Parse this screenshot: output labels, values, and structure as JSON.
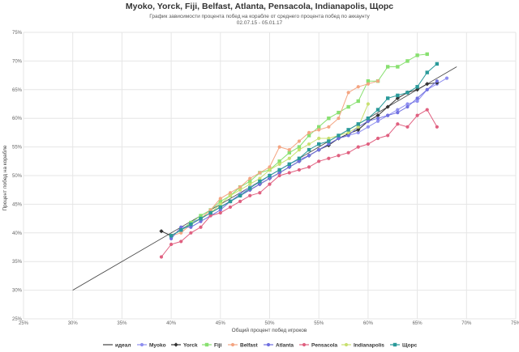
{
  "chart_data": {
    "type": "line",
    "title": "Myoko, Yorck, Fiji, Belfast, Atlanta, Pensacola, Indianapolis, Щорс",
    "subtitle_lines": [
      "График зависимости процента побед на корабле от среднего процента побед по аккаунту",
      "02.07.15 - 05.01.17"
    ],
    "xlabel": "Общий процент побед игроков",
    "ylabel": "Процент побед на корабле",
    "xlim": [
      25,
      75
    ],
    "ylim": [
      25,
      75
    ],
    "x_ticks": [
      "25%",
      "30%",
      "35%",
      "40%",
      "45%",
      "50%",
      "55%",
      "60%",
      "65%",
      "70%",
      "75%"
    ],
    "y_ticks": [
      "25%",
      "30%",
      "35%",
      "40%",
      "45%",
      "50%",
      "55%",
      "60%",
      "65%",
      "70%",
      "75%"
    ],
    "grid": true,
    "legend_position": "bottom",
    "series": [
      {
        "name": "идеал",
        "color": "#444444",
        "marker": "none",
        "points": [
          [
            30,
            30
          ],
          [
            69,
            69
          ]
        ]
      },
      {
        "name": "Myoko",
        "color": "#8f8ff0",
        "marker": "circle",
        "points": [
          [
            40,
            39.5
          ],
          [
            41,
            40.5
          ],
          [
            42,
            41.8
          ],
          [
            43,
            42.5
          ],
          [
            44,
            43.5
          ],
          [
            45,
            44.5
          ],
          [
            46,
            45.5
          ],
          [
            47,
            46.8
          ],
          [
            48,
            48.0
          ],
          [
            49,
            48.8
          ],
          [
            50,
            50.0
          ],
          [
            51,
            51.0
          ],
          [
            52,
            52.0
          ],
          [
            53,
            52.8
          ],
          [
            54,
            53.5
          ],
          [
            55,
            54.5
          ],
          [
            56,
            55.5
          ],
          [
            57,
            56.5
          ],
          [
            58,
            57.0
          ],
          [
            59,
            57.5
          ],
          [
            60,
            58.5
          ],
          [
            61,
            59.5
          ],
          [
            62,
            60.5
          ],
          [
            63,
            61.5
          ],
          [
            64,
            62.5
          ],
          [
            65,
            63.0
          ],
          [
            66,
            65.0
          ],
          [
            67,
            66.0
          ],
          [
            68,
            67.0
          ]
        ]
      },
      {
        "name": "Yorck",
        "color": "#333333",
        "marker": "diamond",
        "points": [
          [
            39,
            40.3
          ],
          [
            40,
            39.5
          ],
          [
            41,
            40.5
          ],
          [
            42,
            41.5
          ],
          [
            43,
            42.5
          ],
          [
            44,
            43.5
          ],
          [
            45,
            44.5
          ],
          [
            46,
            45.5
          ],
          [
            47,
            46.5
          ],
          [
            48,
            47.5
          ],
          [
            49,
            48.5
          ],
          [
            50,
            49.5
          ],
          [
            51,
            50.5
          ],
          [
            52,
            51.5
          ],
          [
            53,
            52.5
          ],
          [
            54,
            53.5
          ],
          [
            55,
            54.5
          ],
          [
            56,
            55.3
          ],
          [
            57,
            56.5
          ],
          [
            58,
            57.3
          ],
          [
            59,
            58.0
          ],
          [
            60,
            59.5
          ],
          [
            61,
            60.5
          ],
          [
            62,
            62.0
          ],
          [
            63,
            63.5
          ],
          [
            64,
            64.5
          ],
          [
            65,
            65.0
          ],
          [
            66,
            66.0
          ],
          [
            67,
            66.2
          ]
        ]
      },
      {
        "name": "Fiji",
        "color": "#88e070",
        "marker": "square",
        "points": [
          [
            40,
            39.5
          ],
          [
            41,
            40.5
          ],
          [
            42,
            41.8
          ],
          [
            43,
            43.0
          ],
          [
            44,
            44.0
          ],
          [
            45,
            45.5
          ],
          [
            46,
            46.5
          ],
          [
            47,
            48.0
          ],
          [
            48,
            49.0
          ],
          [
            49,
            50.5
          ],
          [
            50,
            51.0
          ],
          [
            51,
            52.5
          ],
          [
            52,
            54.0
          ],
          [
            53,
            55.0
          ],
          [
            54,
            57.0
          ],
          [
            55,
            58.5
          ],
          [
            56,
            60.0
          ],
          [
            57,
            61.0
          ],
          [
            58,
            62.0
          ],
          [
            59,
            63.0
          ],
          [
            60,
            66.5
          ],
          [
            61,
            66.5
          ],
          [
            62,
            69.0
          ],
          [
            63,
            69.0
          ],
          [
            64,
            70.0
          ],
          [
            65,
            71.0
          ],
          [
            66,
            71.2
          ]
        ]
      },
      {
        "name": "Belfast",
        "color": "#f4a582",
        "marker": "circle",
        "points": [
          [
            40,
            39.5
          ],
          [
            41,
            40.0
          ],
          [
            42,
            41.5
          ],
          [
            43,
            42.5
          ],
          [
            44,
            44.0
          ],
          [
            45,
            46.0
          ],
          [
            46,
            47.0
          ],
          [
            47,
            48.0
          ],
          [
            48,
            49.5
          ],
          [
            49,
            50.5
          ],
          [
            50,
            51.5
          ],
          [
            51,
            55.0
          ],
          [
            52,
            54.5
          ],
          [
            53,
            56.0
          ],
          [
            54,
            57.5
          ],
          [
            55,
            58.0
          ],
          [
            56,
            58.5
          ],
          [
            57,
            60.0
          ],
          [
            58,
            64.5
          ],
          [
            59,
            65.5
          ],
          [
            60,
            66.0
          ],
          [
            61,
            66.5
          ]
        ]
      },
      {
        "name": "Atlanta",
        "color": "#7070e0",
        "marker": "circle",
        "points": [
          [
            40,
            39.0
          ],
          [
            41,
            41.0
          ],
          [
            42,
            41.0
          ],
          [
            43,
            42.0
          ],
          [
            44,
            43.0
          ],
          [
            45,
            44.0
          ],
          [
            46,
            45.5
          ],
          [
            47,
            46.5
          ],
          [
            48,
            47.5
          ],
          [
            49,
            48.5
          ],
          [
            50,
            49.5
          ],
          [
            51,
            50.5
          ],
          [
            52,
            51.5
          ],
          [
            53,
            52.5
          ],
          [
            54,
            53.5
          ],
          [
            55,
            54.5
          ],
          [
            56,
            55.5
          ],
          [
            57,
            56.5
          ],
          [
            58,
            57.0
          ],
          [
            59,
            58.5
          ],
          [
            60,
            59.5
          ],
          [
            61,
            60.0
          ],
          [
            62,
            60.5
          ],
          [
            63,
            61.0
          ],
          [
            64,
            62.0
          ],
          [
            65,
            63.5
          ],
          [
            66,
            65.0
          ],
          [
            67,
            66.5
          ]
        ]
      },
      {
        "name": "Pensacola",
        "color": "#e06080",
        "marker": "circle",
        "points": [
          [
            39,
            35.8
          ],
          [
            40,
            38.0
          ],
          [
            41,
            38.5
          ],
          [
            42,
            40.0
          ],
          [
            43,
            41.0
          ],
          [
            44,
            43.0
          ],
          [
            45,
            43.5
          ],
          [
            46,
            44.5
          ],
          [
            47,
            45.5
          ],
          [
            48,
            46.5
          ],
          [
            49,
            47.0
          ],
          [
            50,
            48.5
          ],
          [
            51,
            50.0
          ],
          [
            52,
            50.5
          ],
          [
            53,
            51.0
          ],
          [
            54,
            51.5
          ],
          [
            55,
            52.5
          ],
          [
            56,
            53.0
          ],
          [
            57,
            53.5
          ],
          [
            58,
            54.0
          ],
          [
            59,
            55.0
          ],
          [
            60,
            55.5
          ],
          [
            61,
            56.5
          ],
          [
            62,
            57.0
          ],
          [
            63,
            59.0
          ],
          [
            64,
            58.5
          ],
          [
            65,
            60.5
          ],
          [
            66,
            61.5
          ],
          [
            67,
            58.5
          ]
        ]
      },
      {
        "name": "Indianapolis",
        "color": "#c8e070",
        "marker": "circle",
        "points": [
          [
            43,
            42.5
          ],
          [
            44,
            43.5
          ],
          [
            45,
            45.0
          ],
          [
            46,
            46.5
          ],
          [
            47,
            47.5
          ],
          [
            48,
            48.5
          ],
          [
            49,
            49.5
          ],
          [
            50,
            51.0
          ],
          [
            51,
            52.0
          ],
          [
            52,
            53.0
          ],
          [
            53,
            54.5
          ],
          [
            54,
            55.5
          ],
          [
            55,
            56.5
          ],
          [
            56,
            56.5
          ],
          [
            57,
            57.0
          ],
          [
            58,
            57.5
          ],
          [
            59,
            58.5
          ],
          [
            60,
            62.5
          ]
        ]
      },
      {
        "name": "Щорс",
        "color": "#2a9a9a",
        "marker": "square",
        "points": [
          [
            40,
            39.5
          ],
          [
            41,
            40.5
          ],
          [
            42,
            41.5
          ],
          [
            43,
            42.5
          ],
          [
            44,
            43.5
          ],
          [
            45,
            44.5
          ],
          [
            46,
            45.5
          ],
          [
            47,
            46.5
          ],
          [
            48,
            47.8
          ],
          [
            49,
            49.0
          ],
          [
            50,
            50.0
          ],
          [
            51,
            51.0
          ],
          [
            52,
            52.0
          ],
          [
            53,
            53.0
          ],
          [
            54,
            54.5
          ],
          [
            55,
            55.5
          ],
          [
            56,
            56.0
          ],
          [
            57,
            57.0
          ],
          [
            58,
            58.0
          ],
          [
            59,
            59.0
          ],
          [
            60,
            60.0
          ],
          [
            61,
            61.5
          ],
          [
            62,
            63.5
          ],
          [
            63,
            64.0
          ],
          [
            64,
            64.5
          ],
          [
            65,
            65.5
          ],
          [
            66,
            68.0
          ],
          [
            67,
            69.5
          ]
        ]
      }
    ]
  }
}
